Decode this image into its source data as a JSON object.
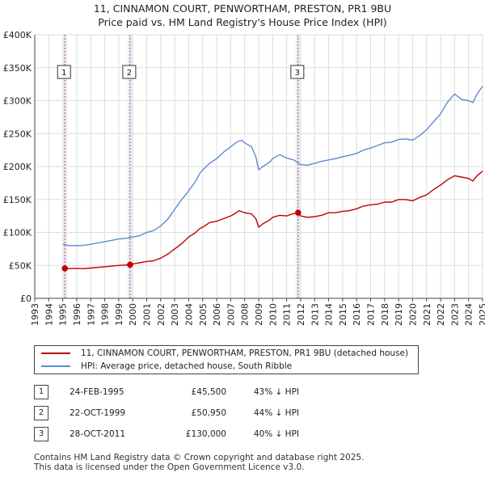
{
  "page_title": {
    "line1": "11, CINNAMON COURT, PENWORTHAM, PRESTON, PR1 9BU",
    "line2": "Price paid vs. HM Land Registry's House Price Index (HPI)"
  },
  "chart_data": {
    "type": "line",
    "title": "11, CINNAMON COURT, PENWORTHAM, PRESTON, PR1 9BU — Price paid vs. HM Land Registry's House Price Index (HPI)",
    "x_range": [
      1993,
      2025
    ],
    "ylim": [
      0,
      400000
    ],
    "y_ticks": [
      0,
      50000,
      100000,
      150000,
      200000,
      250000,
      300000,
      350000,
      400000
    ],
    "y_tick_labels": [
      "£0",
      "£50K",
      "£100K",
      "£150K",
      "£200K",
      "£250K",
      "£300K",
      "£350K",
      "£400K"
    ],
    "x_tick_labels": [
      "1993",
      "1994",
      "1995",
      "1996",
      "1997",
      "1998",
      "1999",
      "2000",
      "2001",
      "2002",
      "2003",
      "2004",
      "2005",
      "2006",
      "2007",
      "2008",
      "2009",
      "2010",
      "2011",
      "2012",
      "2013",
      "2014",
      "2015",
      "2016",
      "2017",
      "2018",
      "2019",
      "2020",
      "2021",
      "2022",
      "2023",
      "2024",
      "2025"
    ],
    "grid": true,
    "hatched_before": 1995.15,
    "series": [
      {
        "name": "11, CINNAMON COURT, PENWORTHAM, PRESTON, PR1 9BU (detached house)",
        "color": "#c00000",
        "points": [
          [
            1995.0,
            46000
          ],
          [
            1995.15,
            45500
          ],
          [
            1995.5,
            45000
          ],
          [
            1996,
            45500
          ],
          [
            1996.5,
            45000
          ],
          [
            1997,
            46000
          ],
          [
            1997.5,
            47000
          ],
          [
            1998,
            48000
          ],
          [
            1998.5,
            49000
          ],
          [
            1999,
            50000
          ],
          [
            1999.5,
            50500
          ],
          [
            1999.81,
            50950
          ],
          [
            2000,
            52000
          ],
          [
            2000.5,
            54000
          ],
          [
            2001,
            56000
          ],
          [
            2001.5,
            57000
          ],
          [
            2002,
            61000
          ],
          [
            2002.5,
            67000
          ],
          [
            2003,
            75000
          ],
          [
            2003.5,
            83000
          ],
          [
            2004,
            93000
          ],
          [
            2004.5,
            100000
          ],
          [
            2004.8,
            106000
          ],
          [
            2005,
            108000
          ],
          [
            2005.5,
            115000
          ],
          [
            2006,
            117000
          ],
          [
            2006.5,
            121000
          ],
          [
            2007,
            125000
          ],
          [
            2007.4,
            130000
          ],
          [
            2007.6,
            133000
          ],
          [
            2008,
            130000
          ],
          [
            2008.5,
            128000
          ],
          [
            2008.8,
            121000
          ],
          [
            2009,
            108000
          ],
          [
            2009.3,
            113000
          ],
          [
            2009.8,
            119000
          ],
          [
            2010,
            123000
          ],
          [
            2010.5,
            126000
          ],
          [
            2011,
            125000
          ],
          [
            2011.4,
            128000
          ],
          [
            2011.82,
            130000
          ],
          [
            2012,
            125000
          ],
          [
            2012.5,
            123000
          ],
          [
            2013,
            124000
          ],
          [
            2013.5,
            126000
          ],
          [
            2014,
            130000
          ],
          [
            2014.5,
            130000
          ],
          [
            2015,
            132000
          ],
          [
            2015.5,
            133000
          ],
          [
            2016,
            136000
          ],
          [
            2016.5,
            140000
          ],
          [
            2017,
            142000
          ],
          [
            2017.5,
            143000
          ],
          [
            2018,
            146000
          ],
          [
            2018.5,
            146000
          ],
          [
            2019,
            150000
          ],
          [
            2019.5,
            150000
          ],
          [
            2020,
            148000
          ],
          [
            2020.5,
            153000
          ],
          [
            2021,
            157000
          ],
          [
            2021.5,
            165000
          ],
          [
            2022,
            172000
          ],
          [
            2022.5,
            180000
          ],
          [
            2023,
            186000
          ],
          [
            2023.5,
            184000
          ],
          [
            2024,
            182000
          ],
          [
            2024.3,
            178000
          ],
          [
            2024.6,
            186000
          ],
          [
            2025,
            193000
          ]
        ]
      },
      {
        "name": "HPI: Average price, detached house, South Ribble",
        "color": "#5b8bd0",
        "points": [
          [
            1995.0,
            82000
          ],
          [
            1995.5,
            80000
          ],
          [
            1996,
            80000
          ],
          [
            1996.5,
            80500
          ],
          [
            1997,
            82000
          ],
          [
            1997.5,
            84000
          ],
          [
            1998,
            86000
          ],
          [
            1998.5,
            88000
          ],
          [
            1999,
            90000
          ],
          [
            1999.5,
            91000
          ],
          [
            2000,
            93000
          ],
          [
            2000.5,
            95000
          ],
          [
            2001,
            100000
          ],
          [
            2001.5,
            103000
          ],
          [
            2002,
            110000
          ],
          [
            2002.5,
            120000
          ],
          [
            2003,
            135000
          ],
          [
            2003.5,
            150000
          ],
          [
            2004,
            163000
          ],
          [
            2004.5,
            178000
          ],
          [
            2004.8,
            190000
          ],
          [
            2005,
            195000
          ],
          [
            2005.5,
            205000
          ],
          [
            2006,
            212000
          ],
          [
            2006.5,
            222000
          ],
          [
            2007,
            230000
          ],
          [
            2007.5,
            238000
          ],
          [
            2007.8,
            240000
          ],
          [
            2008,
            236000
          ],
          [
            2008.5,
            230000
          ],
          [
            2008.8,
            215000
          ],
          [
            2009,
            195000
          ],
          [
            2009.3,
            200000
          ],
          [
            2009.8,
            207000
          ],
          [
            2010,
            212000
          ],
          [
            2010.5,
            218000
          ],
          [
            2011,
            213000
          ],
          [
            2011.5,
            210000
          ],
          [
            2012,
            203000
          ],
          [
            2012.5,
            202000
          ],
          [
            2013,
            205000
          ],
          [
            2013.5,
            208000
          ],
          [
            2014,
            210000
          ],
          [
            2014.5,
            212000
          ],
          [
            2015,
            215000
          ],
          [
            2015.5,
            217000
          ],
          [
            2016,
            220000
          ],
          [
            2016.5,
            225000
          ],
          [
            2017,
            228000
          ],
          [
            2017.5,
            232000
          ],
          [
            2018,
            236000
          ],
          [
            2018.5,
            237000
          ],
          [
            2019,
            241000
          ],
          [
            2019.5,
            242000
          ],
          [
            2020,
            240000
          ],
          [
            2020.5,
            247000
          ],
          [
            2021,
            256000
          ],
          [
            2021.5,
            268000
          ],
          [
            2022,
            280000
          ],
          [
            2022.5,
            298000
          ],
          [
            2023,
            310000
          ],
          [
            2023.5,
            302000
          ],
          [
            2024,
            300000
          ],
          [
            2024.3,
            297000
          ],
          [
            2024.6,
            310000
          ],
          [
            2025,
            322000
          ]
        ]
      }
    ],
    "sales": [
      {
        "marker": "1",
        "x": 1995.15,
        "price": 45500
      },
      {
        "marker": "2",
        "x": 1999.81,
        "price": 50950
      },
      {
        "marker": "3",
        "x": 2011.82,
        "price": 130000
      }
    ]
  },
  "legend": {
    "property_label": "11, CINNAMON COURT, PENWORTHAM, PRESTON, PR1 9BU (detached house)",
    "hpi_label": "HPI: Average price, detached house, South Ribble"
  },
  "sales_table": [
    {
      "num": "1",
      "date": "24-FEB-1995",
      "price": "£45,500",
      "hpi": "43% ↓ HPI"
    },
    {
      "num": "2",
      "date": "22-OCT-1999",
      "price": "£50,950",
      "hpi": "44% ↓ HPI"
    },
    {
      "num": "3",
      "date": "28-OCT-2011",
      "price": "£130,000",
      "hpi": "40% ↓ HPI"
    }
  ],
  "footer": {
    "line1": "Contains HM Land Registry data © Crown copyright and database right 2025.",
    "line2": "This data is licensed under the Open Government Licence v3.0."
  }
}
